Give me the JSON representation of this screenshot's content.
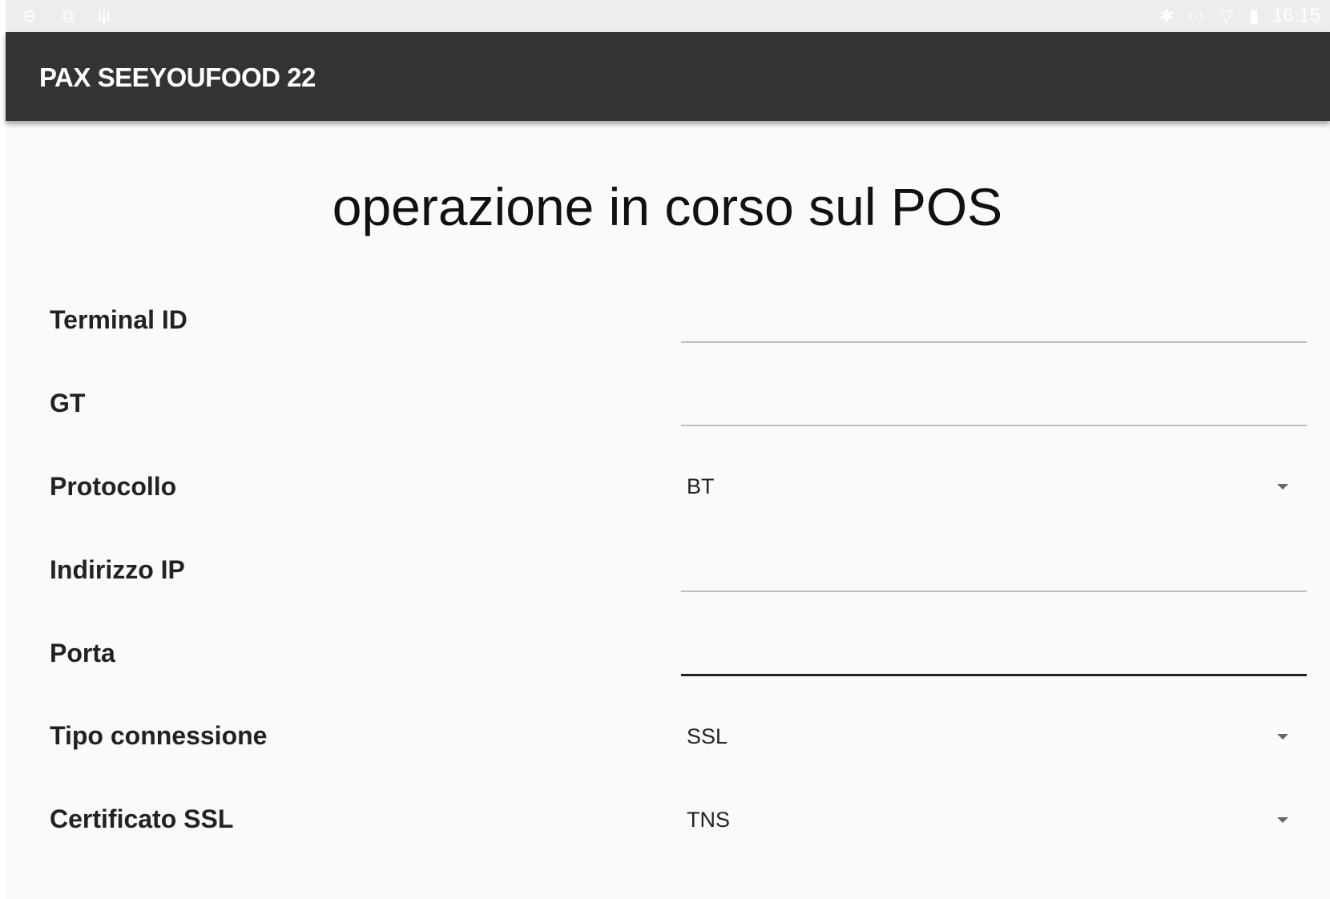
{
  "status_bar": {
    "time": "16:15",
    "icons": [
      "teamviewer-icon",
      "gallery-icon",
      "usb-icon",
      "bluetooth-icon",
      "code-icon",
      "wifi-icon",
      "battery-icon"
    ]
  },
  "app_bar": {
    "title": "PAX SEEYOUFOOD 22"
  },
  "main": {
    "heading": "operazione in corso sul POS",
    "fields": [
      {
        "label": "Terminal ID",
        "type": "text",
        "value": ""
      },
      {
        "label": "GT",
        "type": "text",
        "value": ""
      },
      {
        "label": "Protocollo",
        "type": "select",
        "value": "BT"
      },
      {
        "label": "Indirizzo IP",
        "type": "text",
        "value": ""
      },
      {
        "label": "Porta",
        "type": "text",
        "value": "",
        "focused": true
      },
      {
        "label": "Tipo connessione",
        "type": "select",
        "value": "SSL"
      },
      {
        "label": "Certificato SSL",
        "type": "select",
        "value": "TNS"
      }
    ]
  },
  "colors": {
    "app_bar": "#333333",
    "background": "#fafafa",
    "status_bar": "#ededed"
  }
}
